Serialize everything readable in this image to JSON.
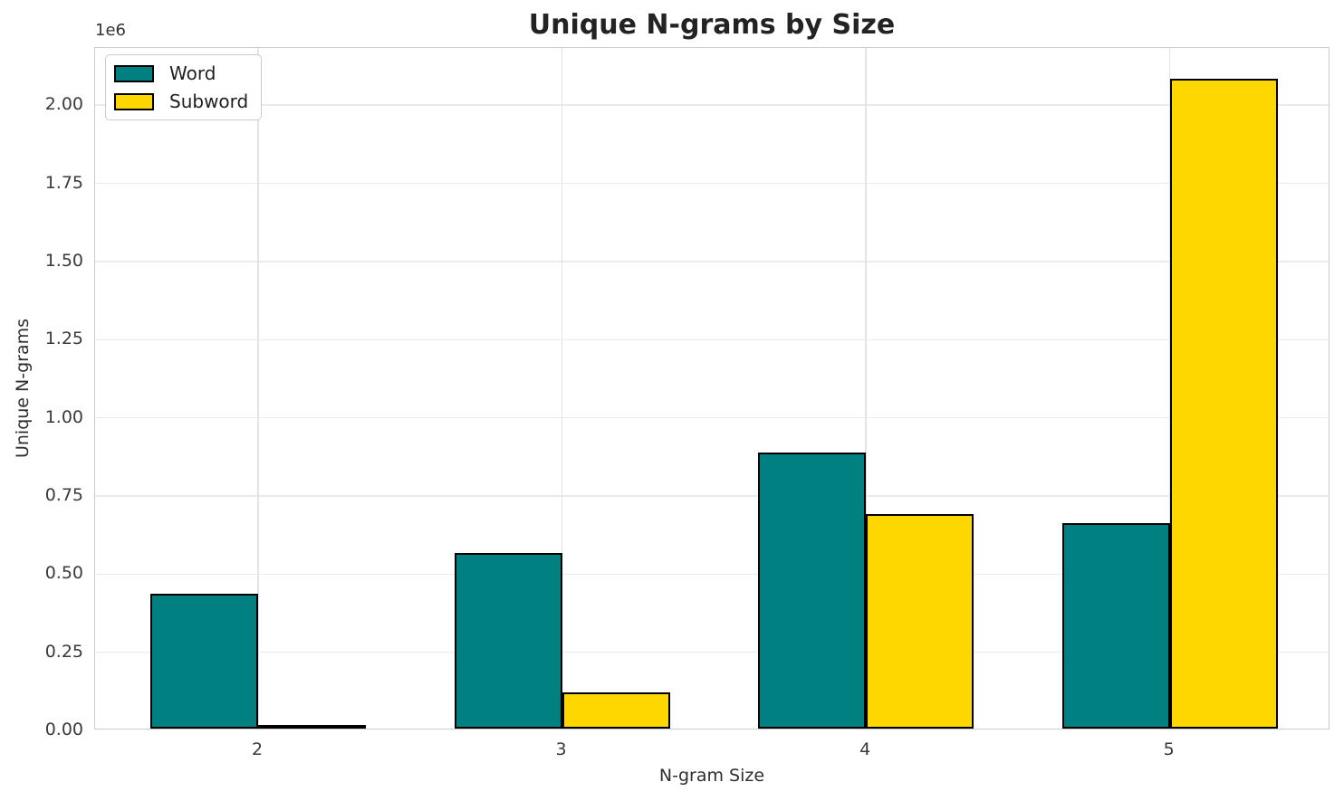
{
  "title": "Unique N-grams by Size",
  "axis_offset_label": "1e6",
  "chart_data": {
    "type": "bar",
    "title": "Unique N-grams by Size",
    "xlabel": "N-gram Size",
    "ylabel": "Unique N-grams",
    "categories": [
      "2",
      "3",
      "4",
      "5"
    ],
    "series": [
      {
        "name": "Word",
        "color": "#008080",
        "values": [
          430000,
          562000,
          883000,
          657000
        ]
      },
      {
        "name": "Subword",
        "color": "#FFD700",
        "values": [
          13000,
          116000,
          686000,
          2079000
        ]
      }
    ],
    "bar_edge_color": "#000000",
    "y_ticks": [
      {
        "value": 0,
        "label": "0.00"
      },
      {
        "value": 250000,
        "label": "0.25"
      },
      {
        "value": 500000,
        "label": "0.50"
      },
      {
        "value": 750000,
        "label": "0.75"
      },
      {
        "value": 1000000,
        "label": "1.00"
      },
      {
        "value": 1250000,
        "label": "1.25"
      },
      {
        "value": 1500000,
        "label": "1.50"
      },
      {
        "value": 1750000,
        "label": "1.75"
      },
      {
        "value": 2000000,
        "label": "2.00"
      }
    ],
    "y_scale_offset": "1e6",
    "ylim": [
      0,
      2183000
    ],
    "grid": true,
    "legend_position": "upper left"
  }
}
